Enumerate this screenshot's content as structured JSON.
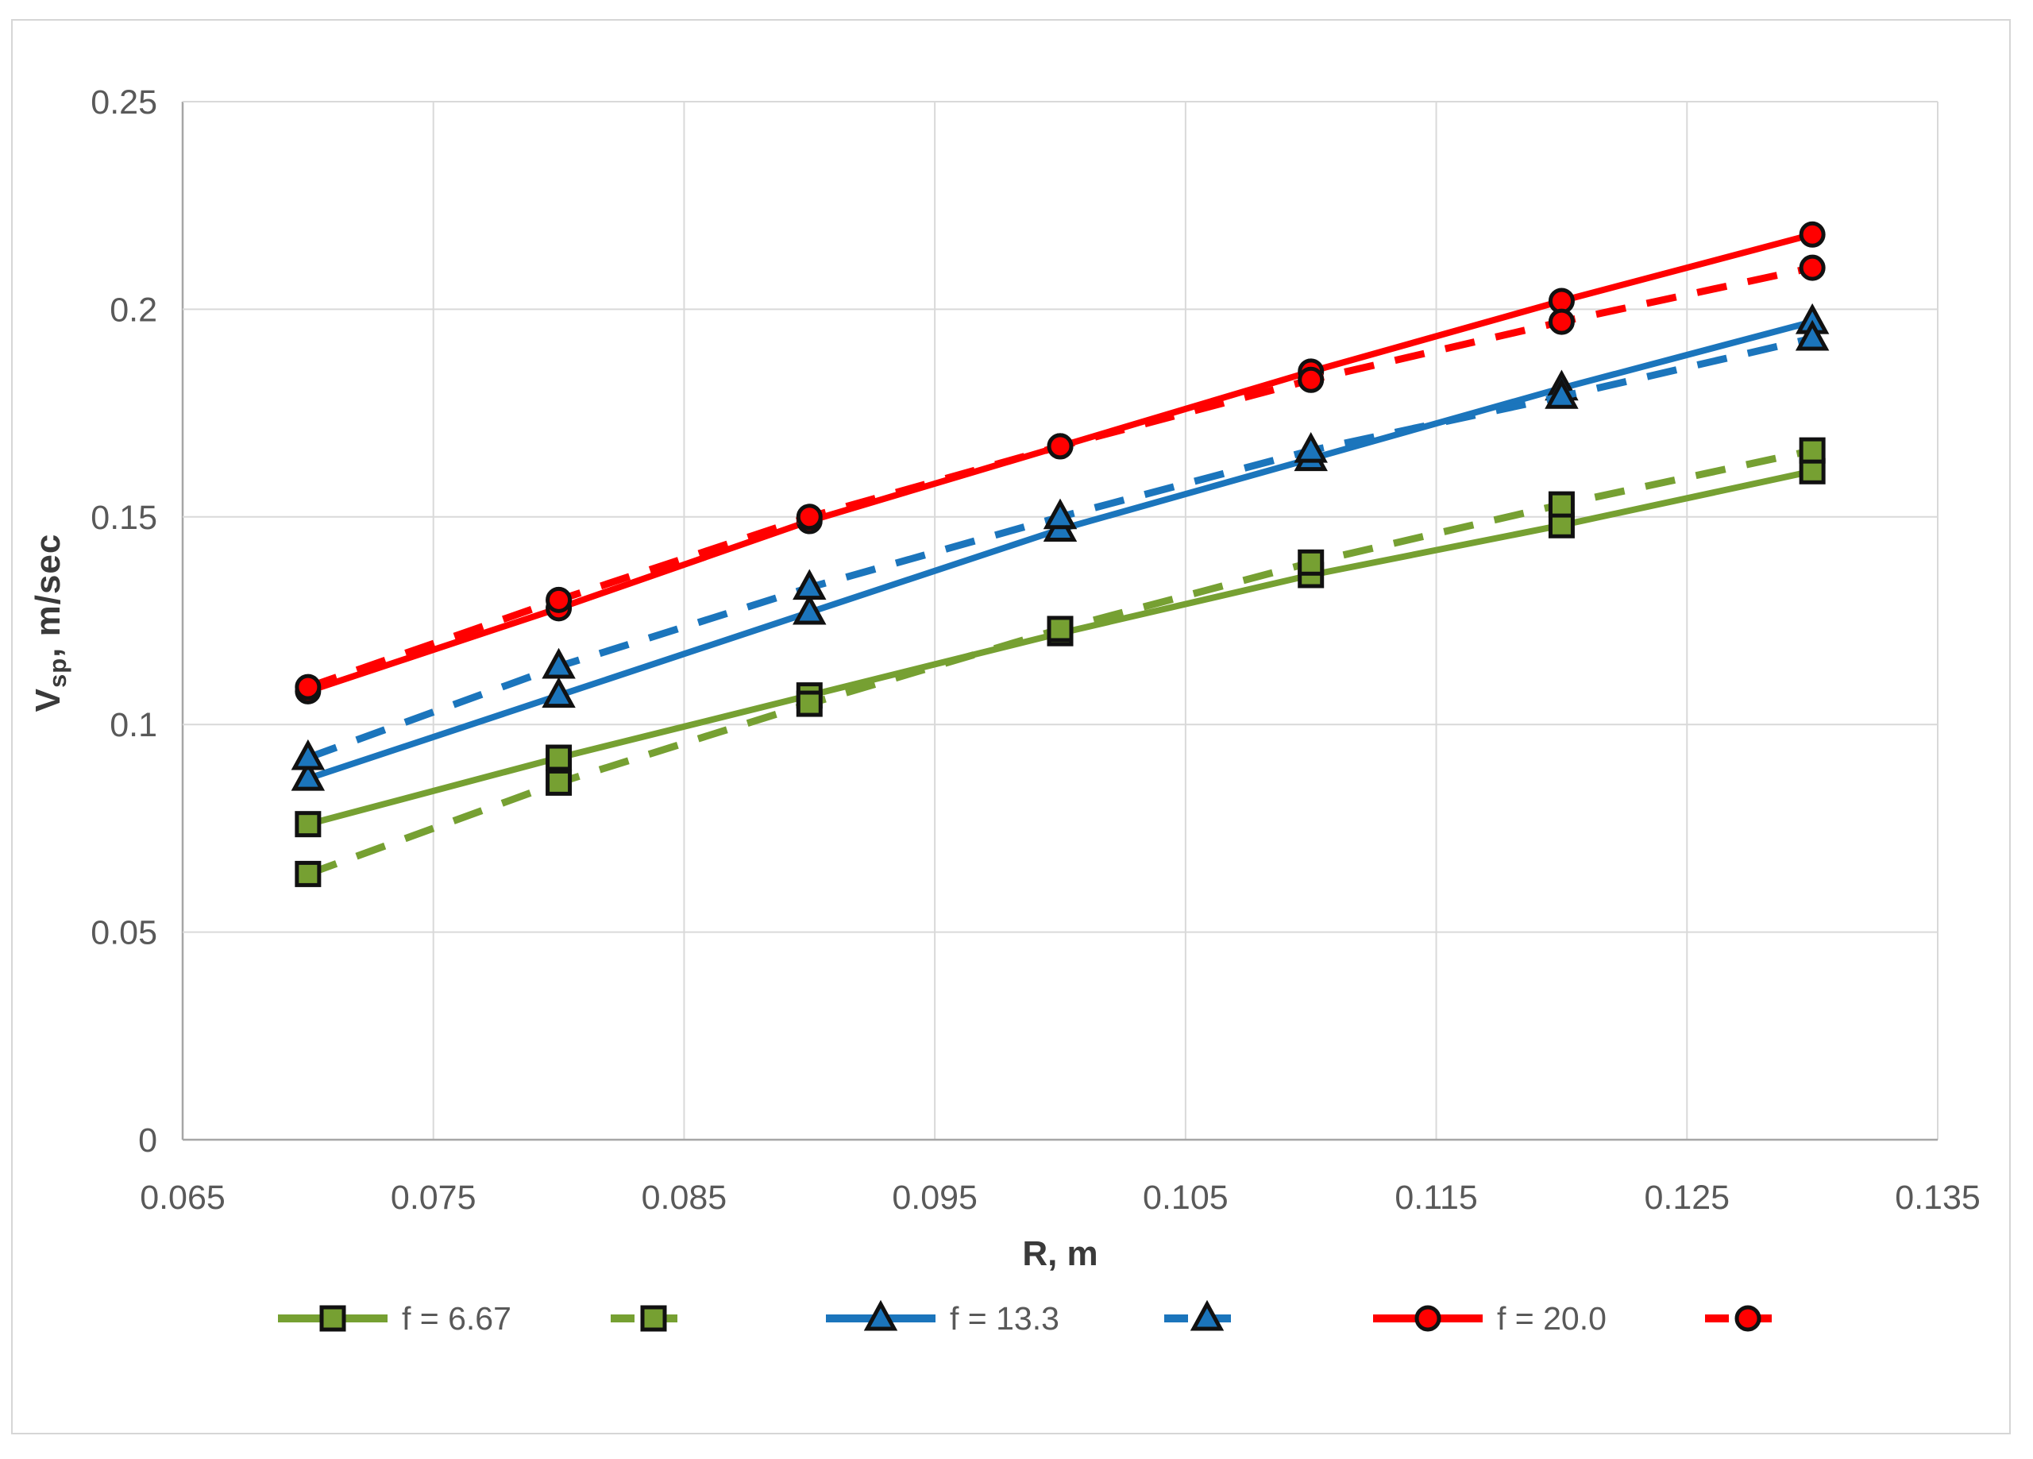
{
  "chart_data": {
    "type": "line",
    "title": "",
    "xlabel": "R, m",
    "ylabel_main": "V",
    "ylabel_sub": "sp",
    "ylabel_rest": ", m/sec",
    "xlim": [
      0.065,
      0.135
    ],
    "ylim": [
      0,
      0.25
    ],
    "grid": true,
    "legend_position": "bottom",
    "xticks": {
      "values": [
        0.065,
        0.075,
        0.085,
        0.095,
        0.105,
        0.115,
        0.125,
        0.135
      ],
      "labels": [
        "0.065",
        "0.075",
        "0.085",
        "0.095",
        "0.105",
        "0.115",
        "0.125",
        "0.135"
      ]
    },
    "yticks": {
      "values": [
        0,
        0.05,
        0.1,
        0.15,
        0.2,
        0.25
      ],
      "labels": [
        "0",
        "0.05",
        "0.1",
        "0.15",
        "0.2",
        "0.25"
      ]
    },
    "x": [
      0.07,
      0.08,
      0.09,
      0.1,
      0.11,
      0.12,
      0.13
    ],
    "series": [
      {
        "name": "f = 6.67 solid",
        "color": "#76A032",
        "marker": "square",
        "dash": false,
        "values": [
          0.076,
          0.092,
          0.107,
          0.122,
          0.136,
          0.148,
          0.161
        ]
      },
      {
        "name": "f = 6.67 dashed",
        "color": "#76A032",
        "marker": "square",
        "dash": true,
        "values": [
          0.064,
          0.086,
          0.105,
          0.123,
          0.139,
          0.153,
          0.166
        ]
      },
      {
        "name": "f = 13.3 solid",
        "color": "#1B75BC",
        "marker": "triangle",
        "dash": false,
        "values": [
          0.087,
          0.107,
          0.127,
          0.147,
          0.164,
          0.181,
          0.197
        ]
      },
      {
        "name": "f = 13.3 dashed",
        "color": "#1B75BC",
        "marker": "triangle",
        "dash": true,
        "values": [
          0.092,
          0.114,
          0.133,
          0.15,
          0.166,
          0.179,
          0.193
        ]
      },
      {
        "name": "f = 20.0 solid",
        "color": "#FF0000",
        "marker": "circle",
        "dash": false,
        "values": [
          0.108,
          0.128,
          0.149,
          0.167,
          0.185,
          0.202,
          0.218
        ]
      },
      {
        "name": "f = 20.0 dashed",
        "color": "#FF0000",
        "marker": "circle",
        "dash": true,
        "values": [
          0.109,
          0.13,
          0.15,
          0.167,
          0.183,
          0.197,
          0.21
        ]
      }
    ],
    "legend": [
      {
        "label": "f = 6.67",
        "color": "#76A032",
        "marker": "square",
        "dash": false
      },
      {
        "label": "",
        "color": "#76A032",
        "marker": "square",
        "dash": true
      },
      {
        "label": "f = 13.3",
        "color": "#1B75BC",
        "marker": "triangle",
        "dash": false
      },
      {
        "label": "",
        "color": "#1B75BC",
        "marker": "triangle",
        "dash": true
      },
      {
        "label": "f = 20.0",
        "color": "#FF0000",
        "marker": "circle",
        "dash": false
      },
      {
        "label": "",
        "color": "#FF0000",
        "marker": "circle",
        "dash": true
      }
    ],
    "colors": {
      "grid": "#d9d9d9",
      "axis": "#a6a6a6",
      "tick_text": "#595959",
      "marker_outline": "#111111"
    }
  }
}
